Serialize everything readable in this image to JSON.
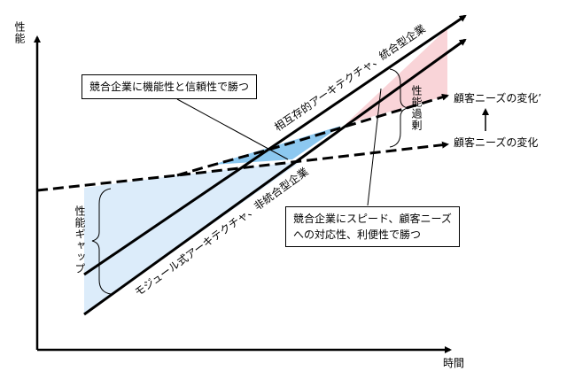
{
  "axes": {
    "y_label": "性能",
    "x_label": "時間"
  },
  "callouts": [
    {
      "lines": [
        "競合企業に機能性と信頼性で勝つ"
      ]
    },
    {
      "lines": [
        "競合企業にスピード、顧客ニーズ",
        "への対応性、利便性で勝つ"
      ]
    }
  ],
  "trajectories": [
    {
      "label": "相互存的アーキテクチャ、統合型企業"
    },
    {
      "label": "モジュール式アーキテクチャ、非統合型企業"
    }
  ],
  "needs": [
    {
      "label": "顧客ニーズの変化’"
    },
    {
      "label": "顧客ニーズの変化"
    }
  ],
  "brackets": [
    {
      "label": "性能過剰"
    },
    {
      "label": "性能ギャップ"
    }
  ]
}
